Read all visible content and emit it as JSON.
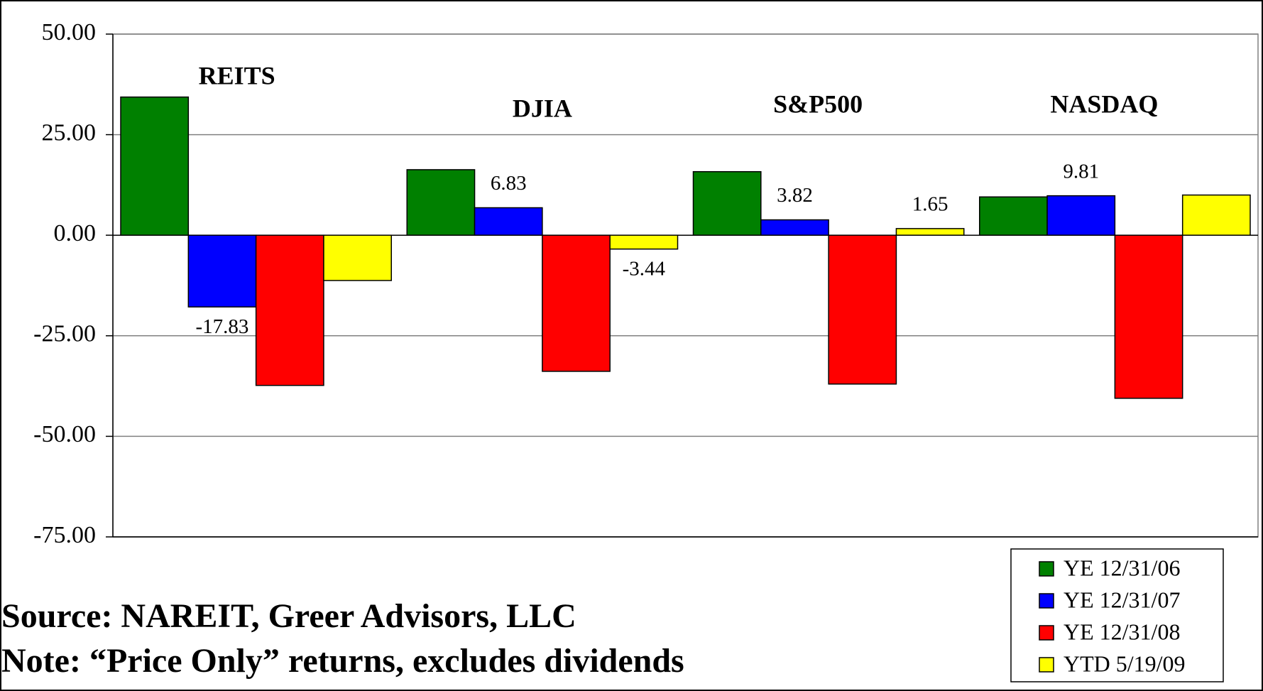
{
  "chart_data": {
    "type": "bar",
    "categories": [
      "REITS",
      "DJIA",
      "S&P500",
      "NASDAQ"
    ],
    "series": [
      {
        "name": "YE 12/31/06",
        "color": "#008000",
        "values": [
          34.35,
          16.29,
          15.8,
          9.52
        ],
        "value_labels": [
          "34.35",
          "16.29",
          "15.80",
          "9.52"
        ]
      },
      {
        "name": "YE 12/31/07",
        "color": "#0000ff",
        "values": [
          -17.83,
          6.83,
          3.82,
          9.81
        ],
        "value_labels": [
          "-17.83",
          "6.83",
          "3.82",
          "9.81"
        ]
      },
      {
        "name": "YE 12/31/08",
        "color": "#ff0000",
        "values": [
          -37.34,
          -33.84,
          -37.0,
          -40.54
        ],
        "value_labels": [
          "-37.34",
          "-33.84",
          "-37.00",
          "-40.54"
        ]
      },
      {
        "name": "YTD 5/19/09",
        "color": "#ffff00",
        "values": [
          -11.26,
          -3.44,
          1.65,
          9.99
        ],
        "value_labels": [
          "-11.26",
          "-3.44",
          "1.65",
          "9.99"
        ]
      }
    ],
    "ylim": [
      -75,
      50
    ],
    "yticks": [
      {
        "value": -75,
        "label": "-75.00"
      },
      {
        "value": -50,
        "label": "-50.00"
      },
      {
        "value": -25,
        "label": "-25.00"
      },
      {
        "value": 0,
        "label": "0.00"
      },
      {
        "value": 25,
        "label": "25.00"
      },
      {
        "value": 50,
        "label": "50.00"
      }
    ],
    "grid": true,
    "legend": "bottom-right",
    "annotations": [
      "Source: NAREIT, Greer Advisors, LLC",
      "Note: “Price Only” returns, excludes dividends"
    ]
  }
}
